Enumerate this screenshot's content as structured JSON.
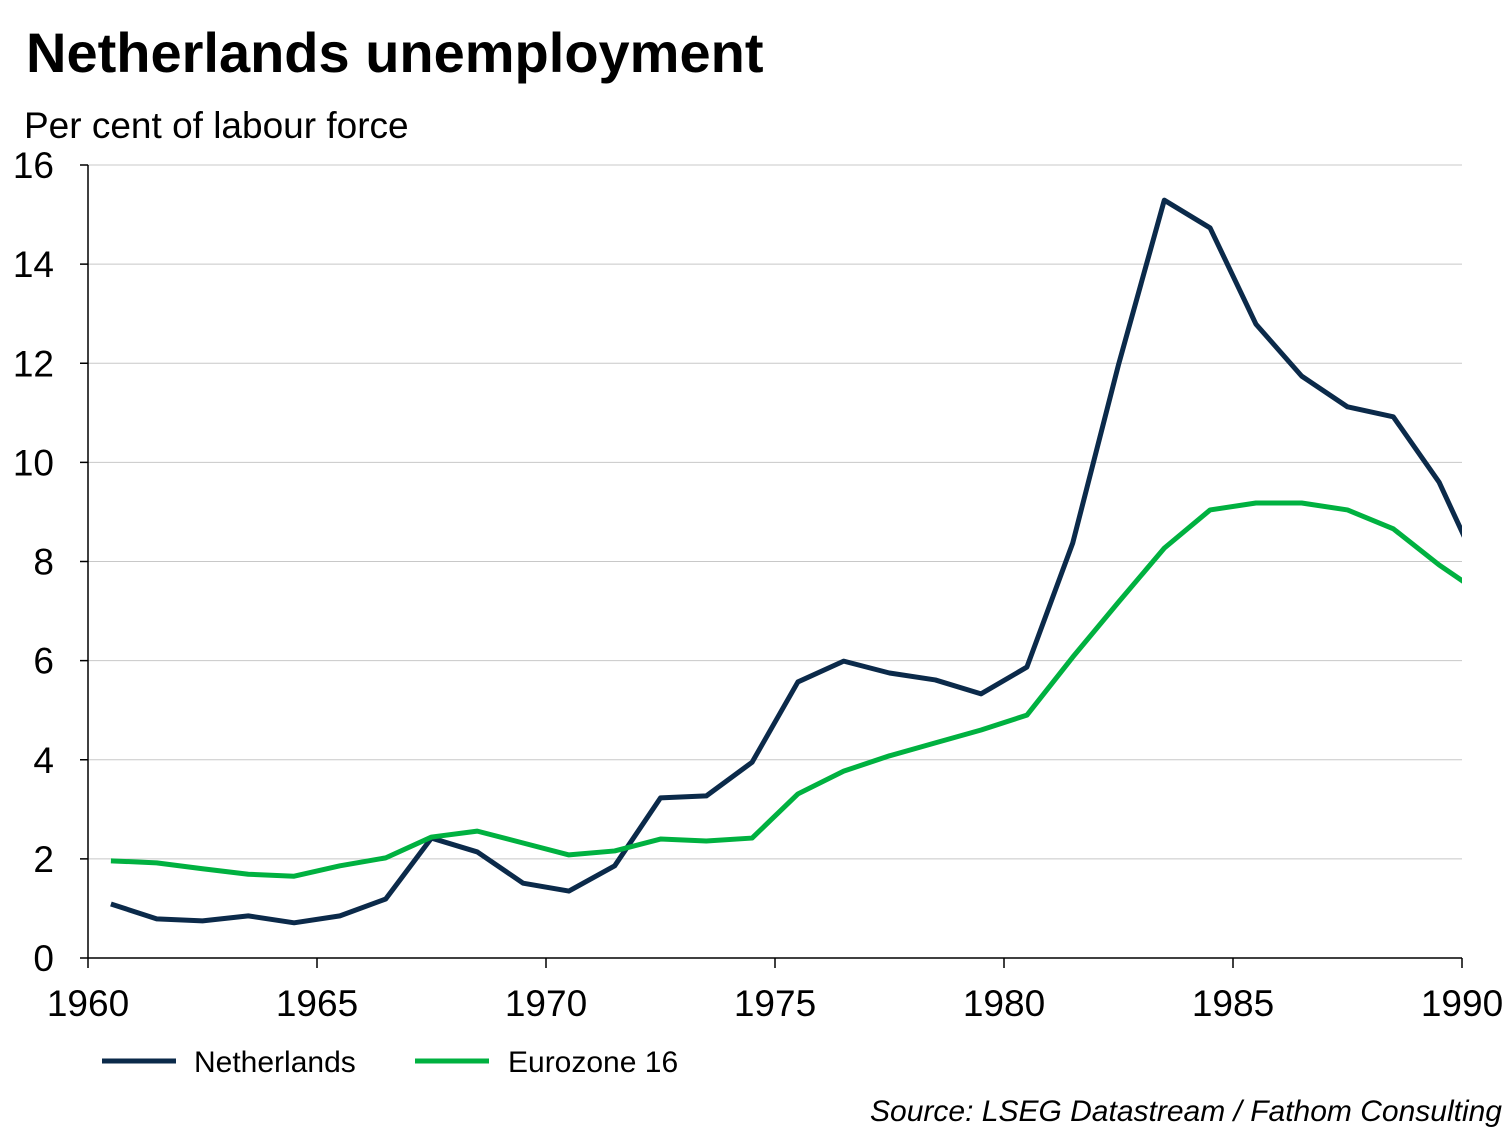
{
  "chart_data": {
    "type": "line",
    "title": "Netherlands unemployment",
    "subtitle": "Per cent of labour force",
    "source": "Source: LSEG Datastream / Fathom Consulting",
    "xlim": [
      1960,
      1990
    ],
    "ylim": [
      0,
      16
    ],
    "xticks": [
      "1960",
      "1965",
      "1970",
      "1975",
      "1980",
      "1985",
      "1990"
    ],
    "yticks": [
      "0",
      "2",
      "4",
      "6",
      "8",
      "10",
      "12",
      "14",
      "16"
    ],
    "grid": "horizontal",
    "legend_position": "bottom-left",
    "x": [
      1960.5,
      1961.5,
      1962.5,
      1963.5,
      1964.5,
      1965.5,
      1966.5,
      1967.5,
      1968.5,
      1969.5,
      1970.5,
      1971.5,
      1972.5,
      1973.5,
      1974.5,
      1975.5,
      1976.5,
      1977.5,
      1978.5,
      1979.5,
      1980.5,
      1981.5,
      1982.5,
      1983.5,
      1984.5,
      1985.5,
      1986.5,
      1987.5,
      1988.5,
      1989.5,
      1990.5
    ],
    "series": [
      {
        "name": "Netherlands",
        "color": "#0b2a4a",
        "values": [
          1.09,
          0.79,
          0.75,
          0.85,
          0.71,
          0.85,
          1.19,
          2.42,
          2.14,
          1.51,
          1.35,
          1.86,
          3.23,
          3.27,
          3.95,
          5.57,
          5.99,
          5.75,
          5.61,
          5.33,
          5.87,
          8.37,
          11.97,
          15.29,
          14.73,
          12.79,
          11.74,
          11.12,
          10.92,
          9.6,
          7.6
        ]
      },
      {
        "name": "Eurozone 16",
        "color": "#00b140",
        "values": [
          1.96,
          1.92,
          1.8,
          1.69,
          1.65,
          1.86,
          2.02,
          2.44,
          2.56,
          2.32,
          2.08,
          2.16,
          2.4,
          2.36,
          2.42,
          3.31,
          3.77,
          4.08,
          4.34,
          4.6,
          4.9,
          6.07,
          7.18,
          8.27,
          9.04,
          9.18,
          9.18,
          9.04,
          8.66,
          7.93,
          7.3
        ]
      }
    ]
  }
}
